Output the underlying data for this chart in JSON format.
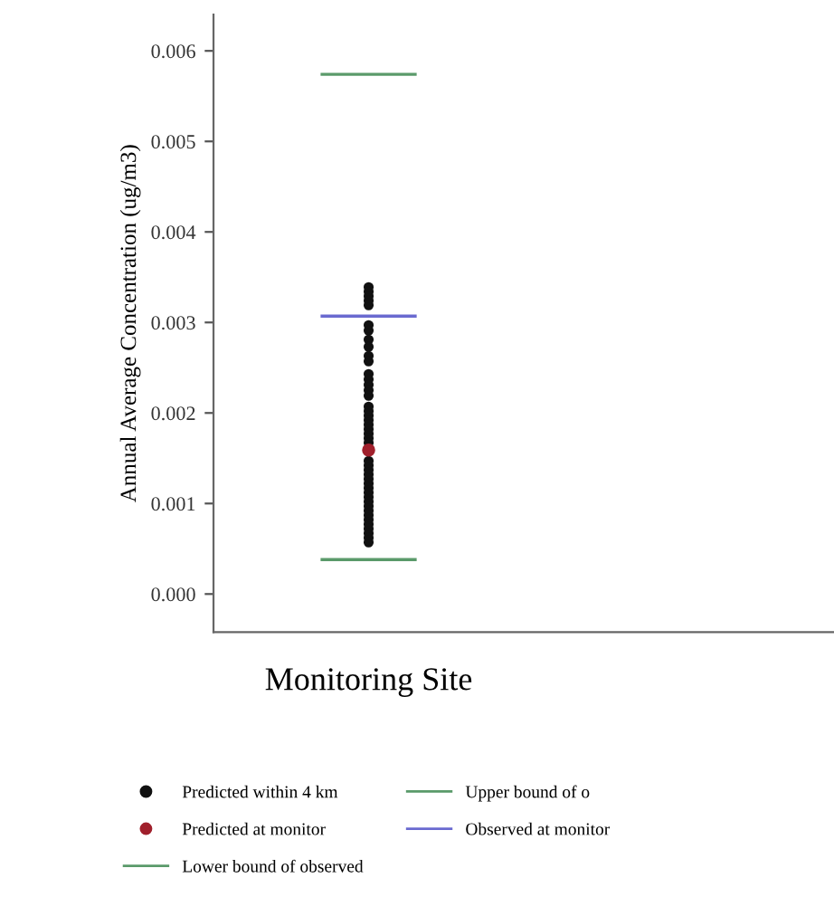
{
  "chart_data": {
    "type": "scatter",
    "ylabel": "Annual Average Concentration (ug/m3)",
    "categories": [
      "Monitoring Site"
    ],
    "ylim": [
      -0.00042,
      0.0064
    ],
    "yticks": [
      {
        "value": 0.0,
        "label": "0.000"
      },
      {
        "value": 0.001,
        "label": "0.001"
      },
      {
        "value": 0.002,
        "label": "0.002"
      },
      {
        "value": 0.003,
        "label": "0.003"
      },
      {
        "value": 0.004,
        "label": "0.004"
      },
      {
        "value": 0.005,
        "label": "0.005"
      },
      {
        "value": 0.006,
        "label": "0.006"
      }
    ],
    "grid": false,
    "legend": "bottom",
    "series": [
      {
        "name": "Predicted within 4 km",
        "color": "#111111",
        "marker": "circle",
        "x": [
          "Monitoring Site",
          "Monitoring Site",
          "Monitoring Site",
          "Monitoring Site",
          "Monitoring Site",
          "Monitoring Site",
          "Monitoring Site",
          "Monitoring Site",
          "Monitoring Site",
          "Monitoring Site",
          "Monitoring Site",
          "Monitoring Site",
          "Monitoring Site",
          "Monitoring Site",
          "Monitoring Site",
          "Monitoring Site",
          "Monitoring Site",
          "Monitoring Site",
          "Monitoring Site",
          "Monitoring Site",
          "Monitoring Site",
          "Monitoring Site",
          "Monitoring Site",
          "Monitoring Site",
          "Monitoring Site",
          "Monitoring Site",
          "Monitoring Site",
          "Monitoring Site",
          "Monitoring Site",
          "Monitoring Site",
          "Monitoring Site",
          "Monitoring Site",
          "Monitoring Site",
          "Monitoring Site",
          "Monitoring Site",
          "Monitoring Site",
          "Monitoring Site",
          "Monitoring Site",
          "Monitoring Site",
          "Monitoring Site",
          "Monitoring Site",
          "Monitoring Site",
          "Monitoring Site",
          "Monitoring Site"
        ],
        "values": [
          0.00339,
          0.00334,
          0.00329,
          0.00324,
          0.00319,
          0.00297,
          0.00291,
          0.00281,
          0.00273,
          0.00263,
          0.00257,
          0.00243,
          0.00237,
          0.00231,
          0.00225,
          0.00219,
          0.00207,
          0.00202,
          0.00197,
          0.00192,
          0.00187,
          0.00182,
          0.00177,
          0.00172,
          0.00167,
          0.00147,
          0.00142,
          0.00137,
          0.00132,
          0.00127,
          0.00122,
          0.00117,
          0.00112,
          0.00107,
          0.00102,
          0.00097,
          0.00092,
          0.00087,
          0.00082,
          0.00077,
          0.00072,
          0.00067,
          0.00062,
          0.00057
        ]
      },
      {
        "name": "Predicted at monitor",
        "color": "#a0202c",
        "marker": "circle",
        "x": [
          "Monitoring Site"
        ],
        "values": [
          0.00159
        ]
      }
    ],
    "ref_lines": [
      {
        "axis": "y",
        "value": 0.00038,
        "label": "Lower bound of observed",
        "color": "#5a9a6a"
      },
      {
        "axis": "y",
        "value": 0.00574,
        "label": "Upper bound of o",
        "color": "#5a9a6a"
      },
      {
        "axis": "y",
        "value": 0.00307,
        "label": "Observed at monitor",
        "color": "#6a6ad0"
      }
    ]
  }
}
